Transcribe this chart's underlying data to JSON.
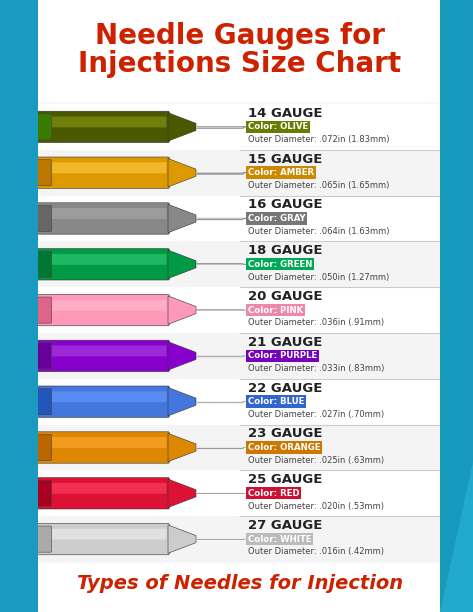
{
  "title_line1": "Needle Gauges for",
  "title_line2": "Injections Size Chart",
  "footer": "Types of Needles for Injection",
  "title_color": "#cc2200",
  "footer_color": "#cc2200",
  "background_color": "#f5f5f5",
  "border_color_left": "#1a9abf",
  "border_color_right": "#1a9abf",
  "divider_color": "#cccccc",
  "needle_shaft_color": "#aaaaaa",
  "text_gauge_color": "#222222",
  "text_diameter_color": "#444444",
  "needles": [
    {
      "gauge": "14 Gauge",
      "color_name": "Olive",
      "color_hex": "#6b7a00",
      "diameter": ".072in (1.83mm)",
      "hub_color": "#4a5800",
      "hub_light": "#8a9a10",
      "cap_color": "#3a7a00"
    },
    {
      "gauge": "15 Gauge",
      "color_name": "Amber",
      "color_hex": "#cc8800",
      "diameter": ".065in (1.65mm)",
      "hub_color": "#dd9900",
      "hub_light": "#ffcc44",
      "cap_color": "#bb7700"
    },
    {
      "gauge": "16 Gauge",
      "color_name": "Gray",
      "color_hex": "#777777",
      "diameter": ".064in (1.63mm)",
      "hub_color": "#888888",
      "hub_light": "#aaaaaa",
      "cap_color": "#666666"
    },
    {
      "gauge": "18 Gauge",
      "color_name": "Green",
      "color_hex": "#00aa55",
      "diameter": ".050in (1.27mm)",
      "hub_color": "#009944",
      "hub_light": "#33cc77",
      "cap_color": "#007733"
    },
    {
      "gauge": "20 Gauge",
      "color_name": "Pink",
      "color_hex": "#ee88aa",
      "diameter": ".036in (.91mm)",
      "hub_color": "#ff99bb",
      "hub_light": "#ffbbcc",
      "cap_color": "#dd6688"
    },
    {
      "gauge": "21 Gauge",
      "color_name": "Purple",
      "color_hex": "#7700bb",
      "diameter": ".033in (.83mm)",
      "hub_color": "#8800cc",
      "hub_light": "#aa44dd",
      "cap_color": "#660099"
    },
    {
      "gauge": "22 Gauge",
      "color_name": "Blue",
      "color_hex": "#3366cc",
      "diameter": ".027in (.70mm)",
      "hub_color": "#4477dd",
      "hub_light": "#6699ff",
      "cap_color": "#2255bb"
    },
    {
      "gauge": "23 Gauge",
      "color_name": "Orange",
      "color_hex": "#cc7700",
      "diameter": ".025in (.63mm)",
      "hub_color": "#dd8800",
      "hub_light": "#ffaa33",
      "cap_color": "#bb6600"
    },
    {
      "gauge": "25 Gauge",
      "color_name": "Red",
      "color_hex": "#cc1133",
      "diameter": ".020in (.53mm)",
      "hub_color": "#dd1133",
      "hub_light": "#ff4466",
      "cap_color": "#aa0022"
    },
    {
      "gauge": "27 Gauge",
      "color_name": "White",
      "color_hex": "#bbbbbb",
      "diameter": ".016in (.42mm)",
      "hub_color": "#cccccc",
      "hub_light": "#eeeeee",
      "cap_color": "#aaaaaa"
    }
  ]
}
